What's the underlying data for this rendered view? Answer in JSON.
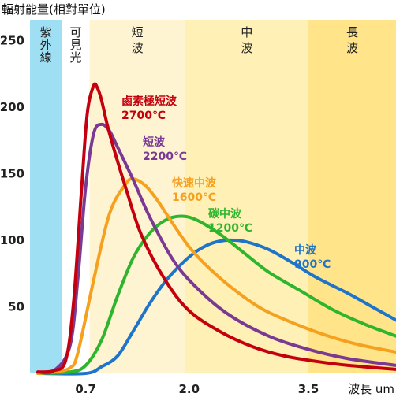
{
  "chart_data": {
    "type": "line",
    "ylabel": "輻射能量(相對單位)",
    "xlabel": "波長 um",
    "x_ticks": [
      "0.7",
      "2.0",
      "3.5"
    ],
    "y_ticks": [
      "50",
      "100",
      "150",
      "200",
      "250"
    ],
    "xlim": [
      0.0,
      4.6
    ],
    "ylim": [
      0,
      265
    ],
    "bands": [
      {
        "label": "紫外線",
        "x0": 0.0,
        "x1": 0.4,
        "color": "#9fdff4"
      },
      {
        "label": "可見光",
        "x0": 0.4,
        "x1": 0.75,
        "color": "#ffffff"
      },
      {
        "label": "短波",
        "x0": 0.75,
        "x1": 1.95,
        "color": "#fff4d2"
      },
      {
        "label": "中波",
        "x0": 1.95,
        "x1": 3.5,
        "color": "#fff0b5"
      },
      {
        "label": "長波",
        "x0": 3.5,
        "x1": 4.6,
        "color": "#ffe48a"
      }
    ],
    "series": [
      {
        "name": "鹵素極短波 2700℃",
        "color": "#c4000e",
        "x": [
          0.1,
          0.3,
          0.45,
          0.55,
          0.65,
          0.72,
          0.8,
          0.85,
          0.9,
          1.0,
          1.2,
          1.4,
          1.7,
          2.0,
          2.4,
          2.8,
          3.2,
          3.6,
          4.0,
          4.6
        ],
        "y": [
          1,
          2,
          10,
          55,
          140,
          195,
          216,
          214,
          205,
          180,
          140,
          104,
          70,
          47,
          31,
          20,
          13,
          9,
          6,
          3
        ]
      },
      {
        "name": "短波 2200℃",
        "color": "#7a3a94",
        "x": [
          0.1,
          0.3,
          0.5,
          0.6,
          0.7,
          0.8,
          0.9,
          1.0,
          1.1,
          1.3,
          1.5,
          1.8,
          2.1,
          2.5,
          3.0,
          3.5,
          4.0,
          4.6
        ],
        "y": [
          1,
          2,
          20,
          70,
          140,
          180,
          187,
          182,
          170,
          145,
          118,
          85,
          64,
          44,
          28,
          18,
          11,
          6
        ]
      },
      {
        "name": "快速中波 1600℃",
        "color": "#f5a01e",
        "x": [
          0.1,
          0.3,
          0.5,
          0.6,
          0.8,
          1.0,
          1.2,
          1.3,
          1.45,
          1.6,
          1.8,
          2.0,
          2.2,
          2.5,
          2.9,
          3.3,
          3.7,
          4.1,
          4.6
        ],
        "y": [
          0,
          1,
          4,
          15,
          70,
          120,
          142,
          146,
          141,
          130,
          112,
          95,
          82,
          66,
          49,
          38,
          29,
          22,
          16
        ]
      },
      {
        "name": "碳中波 1200℃",
        "color": "#2db52d",
        "x": [
          0.1,
          0.5,
          0.7,
          0.9,
          1.1,
          1.3,
          1.5,
          1.7,
          1.9,
          2.1,
          2.4,
          2.7,
          3.0,
          3.4,
          3.8,
          4.2,
          4.6
        ],
        "y": [
          0,
          1,
          6,
          25,
          58,
          87,
          105,
          115,
          118,
          115,
          104,
          90,
          76,
          62,
          48,
          37,
          28
        ]
      },
      {
        "name": "中波 900℃",
        "color": "#1e74c9",
        "x": [
          0.1,
          0.7,
          0.9,
          1.1,
          1.3,
          1.5,
          1.7,
          1.9,
          2.1,
          2.3,
          2.5,
          2.7,
          3.0,
          3.3,
          3.6,
          4.0,
          4.3,
          4.6
        ],
        "y": [
          0,
          0,
          5,
          13,
          32,
          52,
          69,
          82,
          92,
          98,
          100,
          99,
          93,
          83,
          72,
          60,
          50,
          40
        ]
      }
    ]
  }
}
